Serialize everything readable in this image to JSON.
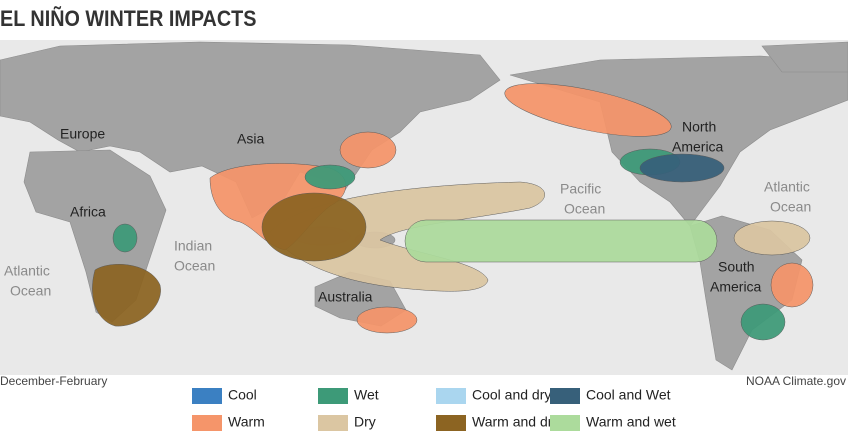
{
  "title": "EL NIÑO WINTER IMPACTS",
  "labels": {
    "europe": "Europe",
    "asia": "Asia",
    "africa": "Africa",
    "indian_ocean": [
      "Indian",
      "Ocean"
    ],
    "atlantic_west": [
      "Atlantic",
      "Ocean"
    ],
    "australia": "Australia",
    "pacific": [
      "Pacific",
      "Ocean"
    ],
    "north_america": [
      "North",
      "America"
    ],
    "atlantic_east": [
      "Atlantic",
      "Ocean"
    ],
    "south_america": [
      "South",
      "America"
    ]
  },
  "footer": {
    "left": "December-February",
    "right": "NOAA Climate.gov"
  },
  "legend": [
    {
      "label": "Cool",
      "color": "#3b80c2"
    },
    {
      "label": "Wet",
      "color": "#3d9a78"
    },
    {
      "label": "Cool and dry",
      "color": "#aad6ef"
    },
    {
      "label": "Cool and Wet",
      "color": "#37607a"
    },
    {
      "label": "Warm",
      "color": "#f5956a"
    },
    {
      "label": "Dry",
      "color": "#dbc6a2"
    },
    {
      "label": "Warm and dry",
      "color": "#8c6422"
    },
    {
      "label": "Warm and wet",
      "color": "#acdb9c"
    }
  ]
}
